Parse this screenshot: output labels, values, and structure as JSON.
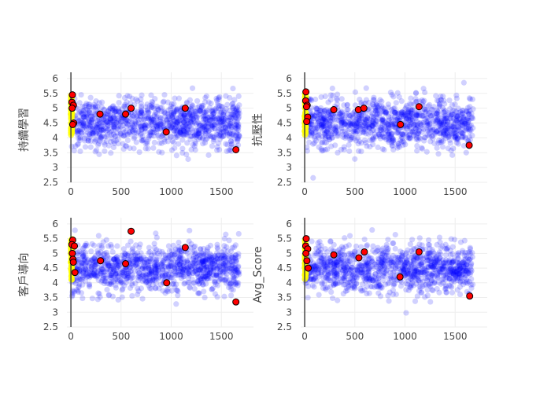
{
  "chart_data": {
    "type": "scatter",
    "layout": "2x2 facets",
    "xlim": [
      -40,
      1820
    ],
    "ylim": [
      2.5,
      6.05
    ],
    "x_ticks": [
      0,
      500,
      1000,
      1500
    ],
    "x_tick_labels": [
      "0",
      "500",
      "1000",
      "1500"
    ],
    "y_ticks": [
      2.5,
      3,
      3.5,
      4,
      4.5,
      5,
      5.5,
      6
    ],
    "y_tick_labels": [
      "2.5",
      "3",
      "3.5",
      "4",
      "4.5",
      "5",
      "5.5",
      "6"
    ],
    "grid": true,
    "colors": {
      "background_points": "#0000ff",
      "near_zero_points": "#ffff00",
      "highlight_points": "#ff0000",
      "highlight_outline": "#000000",
      "zero_line": "#444444",
      "grid": "#eeeeee"
    },
    "background_cloud": {
      "x_range": [
        0,
        1680
      ],
      "center_y": 4.5,
      "n_points": 1100,
      "description": "dense cloud of semi-transparent blue points"
    },
    "panels": [
      {
        "ylabel": "持續學習",
        "highlight_points": [
          {
            "x": 15,
            "y": 5.45
          },
          {
            "x": 10,
            "y": 5.2
          },
          {
            "x": 25,
            "y": 5.1
          },
          {
            "x": 12,
            "y": 5.0
          },
          {
            "x": 28,
            "y": 4.5
          },
          {
            "x": 18,
            "y": 4.45
          },
          {
            "x": 290,
            "y": 4.8
          },
          {
            "x": 545,
            "y": 4.8
          },
          {
            "x": 600,
            "y": 5.0
          },
          {
            "x": 950,
            "y": 4.2
          },
          {
            "x": 1140,
            "y": 5.0
          },
          {
            "x": 1645,
            "y": 3.6
          }
        ]
      },
      {
        "ylabel": "抗壓性",
        "highlight_points": [
          {
            "x": 12,
            "y": 5.55
          },
          {
            "x": 10,
            "y": 5.25
          },
          {
            "x": 25,
            "y": 5.1
          },
          {
            "x": 18,
            "y": 5.05
          },
          {
            "x": 30,
            "y": 4.7
          },
          {
            "x": 20,
            "y": 4.55
          },
          {
            "x": 290,
            "y": 4.95
          },
          {
            "x": 535,
            "y": 4.95
          },
          {
            "x": 590,
            "y": 5.0
          },
          {
            "x": 955,
            "y": 4.45
          },
          {
            "x": 1140,
            "y": 5.05
          },
          {
            "x": 1640,
            "y": 3.75
          }
        ]
      },
      {
        "ylabel": "客戶導向",
        "highlight_points": [
          {
            "x": 18,
            "y": 5.45
          },
          {
            "x": 10,
            "y": 5.3
          },
          {
            "x": 35,
            "y": 5.25
          },
          {
            "x": 14,
            "y": 5.0
          },
          {
            "x": 20,
            "y": 4.8
          },
          {
            "x": 24,
            "y": 4.7
          },
          {
            "x": 40,
            "y": 4.35
          },
          {
            "x": 295,
            "y": 4.75
          },
          {
            "x": 545,
            "y": 4.65
          },
          {
            "x": 600,
            "y": 5.75
          },
          {
            "x": 955,
            "y": 4.0
          },
          {
            "x": 1140,
            "y": 5.2
          },
          {
            "x": 1645,
            "y": 3.35
          }
        ]
      },
      {
        "ylabel": "Avg_Score",
        "highlight_points": [
          {
            "x": 15,
            "y": 5.5
          },
          {
            "x": 10,
            "y": 5.25
          },
          {
            "x": 30,
            "y": 5.15
          },
          {
            "x": 12,
            "y": 5.0
          },
          {
            "x": 22,
            "y": 4.75
          },
          {
            "x": 35,
            "y": 4.5
          },
          {
            "x": 290,
            "y": 4.95
          },
          {
            "x": 540,
            "y": 4.85
          },
          {
            "x": 595,
            "y": 5.05
          },
          {
            "x": 950,
            "y": 4.2
          },
          {
            "x": 1140,
            "y": 5.05
          },
          {
            "x": 1645,
            "y": 3.55
          }
        ]
      }
    ]
  }
}
